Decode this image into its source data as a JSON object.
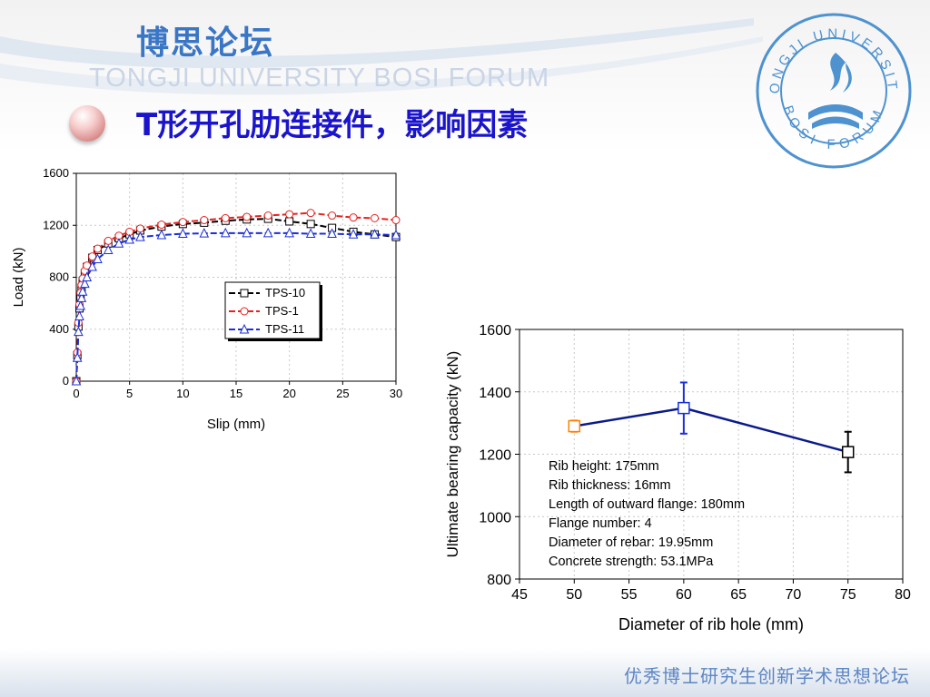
{
  "header": {
    "brand_cn": "博思论坛",
    "brand_en": "TONGJI UNIVERSITY BOSI FORUM",
    "title": "T形开孔肋连接件，影响因素",
    "logo_text_top": "TONGJI UNIVERSITY",
    "logo_text_bottom": "BOSI FORUM"
  },
  "footer": {
    "text": "优秀博士研究生创新学术思想论坛"
  },
  "colors": {
    "title": "#1a14cc",
    "brand": "#3a76c6"
  },
  "chart_data": [
    {
      "type": "scatter",
      "xlabel": "Slip (mm)",
      "ylabel": "Load (kN)",
      "xlim": [
        0,
        30
      ],
      "ylim": [
        0,
        1600
      ],
      "x_ticks": [
        "0",
        "5",
        "10",
        "15",
        "20",
        "25",
        "30"
      ],
      "y_ticks": [
        "0",
        "400",
        "800",
        "1200",
        "1600"
      ],
      "grid": true,
      "legend": "center-right",
      "series": [
        {
          "name": "TPS-10",
          "color": "#000000",
          "marker": "square",
          "x": [
            0,
            0.1,
            0.2,
            0.3,
            0.4,
            0.5,
            0.6,
            0.8,
            1.0,
            1.5,
            2,
            3,
            4,
            5,
            6,
            8,
            10,
            12,
            14,
            16,
            18,
            20,
            22,
            24,
            26,
            28,
            30
          ],
          "y": [
            0,
            200,
            420,
            560,
            650,
            720,
            770,
            830,
            880,
            950,
            1010,
            1060,
            1100,
            1130,
            1160,
            1190,
            1210,
            1220,
            1235,
            1245,
            1250,
            1230,
            1210,
            1180,
            1150,
            1130,
            1110
          ]
        },
        {
          "name": "TPS-1",
          "color": "#e8211e",
          "marker": "circle",
          "x": [
            0,
            0.1,
            0.2,
            0.3,
            0.4,
            0.5,
            0.6,
            0.8,
            1.0,
            1.5,
            2,
            3,
            4,
            5,
            6,
            8,
            10,
            12,
            14,
            16,
            18,
            20,
            22,
            24,
            26,
            28,
            30
          ],
          "y": [
            0,
            220,
            450,
            590,
            680,
            740,
            790,
            850,
            890,
            960,
            1020,
            1080,
            1120,
            1150,
            1175,
            1205,
            1225,
            1240,
            1255,
            1265,
            1275,
            1285,
            1295,
            1275,
            1260,
            1255,
            1240
          ]
        },
        {
          "name": "TPS-11",
          "color": "#1b2fd8",
          "marker": "triangle",
          "x": [
            0,
            0.1,
            0.2,
            0.3,
            0.4,
            0.5,
            0.6,
            0.8,
            1.0,
            1.5,
            2,
            3,
            4,
            5,
            6,
            8,
            10,
            12,
            14,
            16,
            18,
            20,
            22,
            24,
            26,
            28,
            30
          ],
          "y": [
            0,
            180,
            380,
            500,
            580,
            640,
            690,
            750,
            800,
            880,
            940,
            1010,
            1060,
            1090,
            1110,
            1125,
            1135,
            1138,
            1140,
            1140,
            1140,
            1140,
            1135,
            1135,
            1130,
            1130,
            1125
          ]
        }
      ]
    },
    {
      "type": "line",
      "xlabel": "Diameter of rib hole (mm)",
      "ylabel": "Ultimate bearing capacity (kN)",
      "xlim": [
        45,
        80
      ],
      "ylim": [
        800,
        1600
      ],
      "x_ticks": [
        "45",
        "50",
        "55",
        "60",
        "65",
        "70",
        "75",
        "80"
      ],
      "y_ticks": [
        "800",
        "1000",
        "1200",
        "1400",
        "1600"
      ],
      "grid": true,
      "points": [
        {
          "x": 50,
          "y": 1290,
          "err": 18,
          "color": "#ff8000"
        },
        {
          "x": 60,
          "y": 1348,
          "err": 82,
          "color": "#1b2fd8"
        },
        {
          "x": 75,
          "y": 1207,
          "err": 65,
          "color": "#000000"
        }
      ],
      "line_color": "#0a1a8c",
      "annotations": [
        "Rib height: 175mm",
        "Rib thickness: 16mm",
        "Length of outward flange: 180mm",
        "Flange number: 4",
        "Diameter of rebar: 19.95mm",
        "Concrete strength:  53.1MPa"
      ]
    }
  ]
}
